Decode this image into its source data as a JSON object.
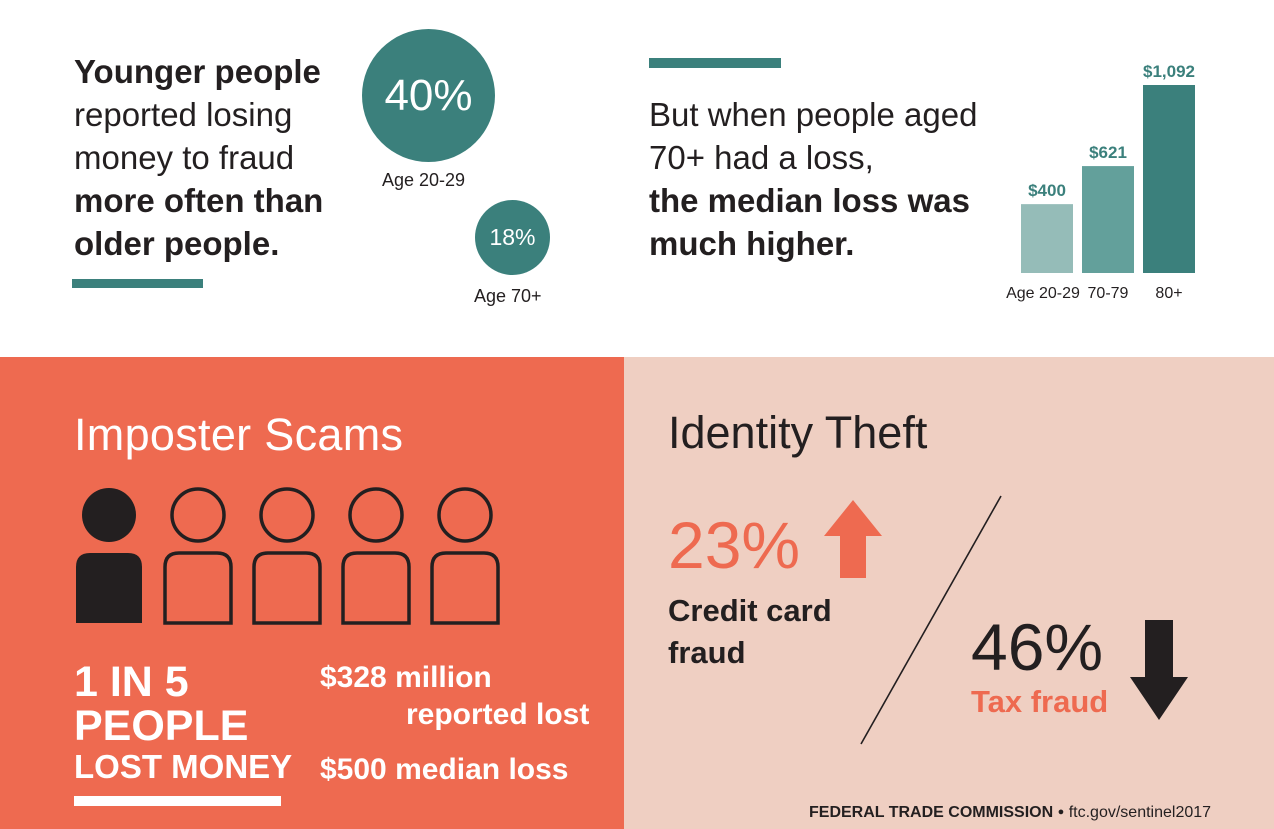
{
  "age_section": {
    "heading_bold": "Younger people",
    "heading_regular": "reported losing money to fraud",
    "heading_bold2": "more often than older people.",
    "bubbles": [
      {
        "value": "40%",
        "label": "Age 20-29"
      },
      {
        "value": "18%",
        "label": "Age 70+"
      }
    ]
  },
  "median_section": {
    "text_regular": "But when people aged 70+ had a loss,",
    "text_bold": "the median loss was much higher."
  },
  "chart_data": {
    "type": "bar",
    "categories": [
      "Age 20-29",
      "70-79",
      "80+"
    ],
    "values": [
      400,
      621,
      1092
    ],
    "value_labels": [
      "$400",
      "$621",
      "$1,092"
    ],
    "colors": [
      "#95bcb8",
      "#63a09b",
      "#3b807c"
    ],
    "title": "",
    "xlabel": "",
    "ylabel": ""
  },
  "imposter": {
    "title": "Imposter Scams",
    "people_total": 5,
    "people_filled": 1,
    "one_in": "1 IN 5",
    "people": "PEOPLE",
    "lost_money": "LOST MONEY",
    "stat_amount": "$328 million",
    "stat_reported": "reported lost",
    "stat_median": "$500 median loss"
  },
  "identity_theft": {
    "title": "Identity Theft",
    "credit_pct": "23%",
    "credit_label_line1": "Credit card",
    "credit_label_line2": "fraud",
    "credit_direction": "up-arrow-icon",
    "tax_pct": "46%",
    "tax_label": "Tax fraud",
    "tax_direction": "down-arrow-icon"
  },
  "footer": {
    "agency": "FEDERAL TRADE COMMISSION",
    "separator": "●",
    "url": "ftc.gov/sentinel2017"
  },
  "colors": {
    "teal": "#3b807c",
    "coral": "#ee6a50",
    "blush": "#efcfc2",
    "dark": "#231f20"
  }
}
